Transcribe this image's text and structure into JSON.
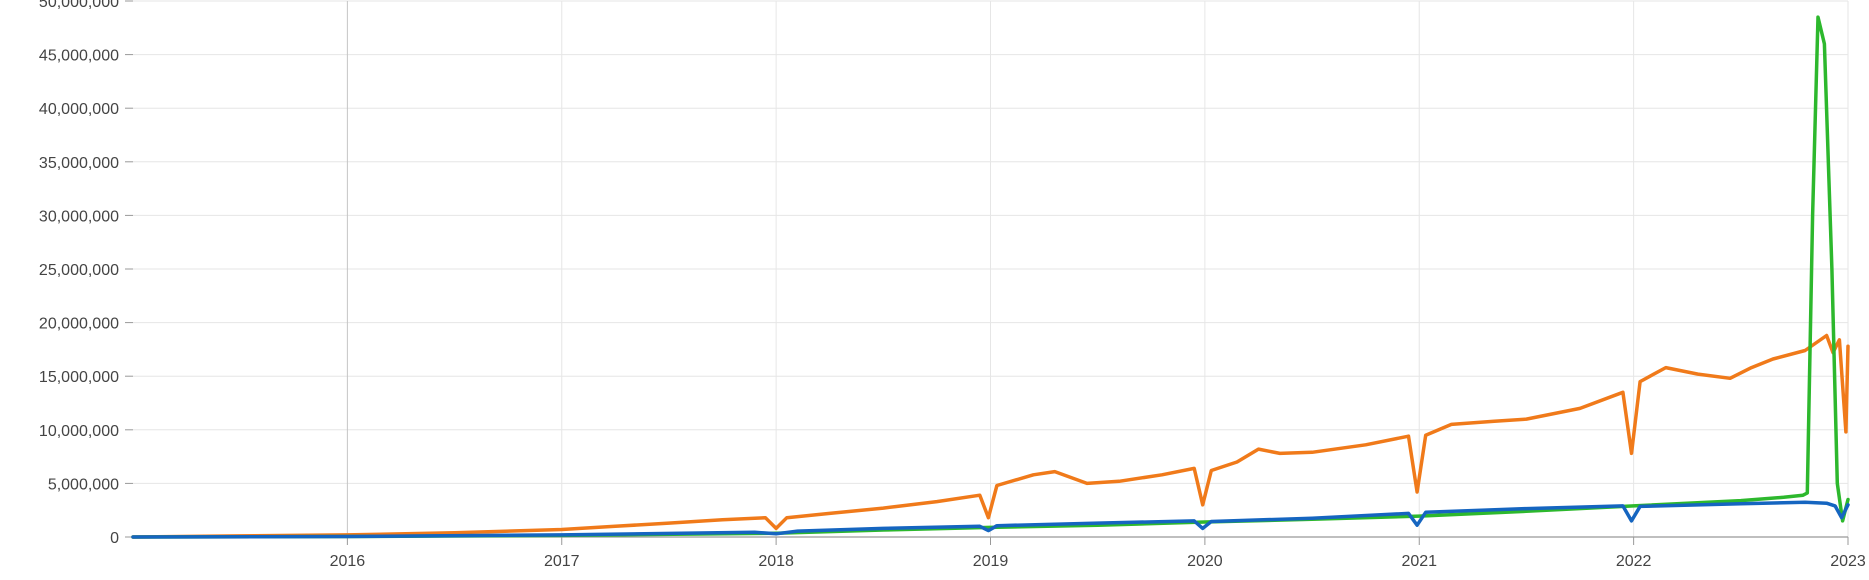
{
  "chart_data": {
    "type": "line",
    "title": "",
    "xlabel": "",
    "ylabel": "",
    "xlim": [
      2015.0,
      2023.0
    ],
    "ylim": [
      0,
      50000000
    ],
    "grid": true,
    "x_ticks": [
      2016,
      2017,
      2018,
      2019,
      2020,
      2021,
      2022,
      2023
    ],
    "x_tick_labels": [
      "2016",
      "2017",
      "2018",
      "2019",
      "2020",
      "2021",
      "2022",
      "2023"
    ],
    "y_ticks": [
      0,
      5000000,
      10000000,
      15000000,
      20000000,
      25000000,
      30000000,
      35000000,
      40000000,
      45000000,
      50000000
    ],
    "y_tick_labels": [
      "0",
      "5,000,000",
      "10,000,000",
      "15,000,000",
      "20,000,000",
      "25,000,000",
      "30,000,000",
      "35,000,000",
      "40,000,000",
      "45,000,000",
      "50,000,000"
    ],
    "series": [
      {
        "color": "#f07a1a",
        "x": [
          2015.0,
          2015.5,
          2016.0,
          2016.5,
          2017.0,
          2017.25,
          2017.5,
          2017.75,
          2017.95,
          2018.0,
          2018.05,
          2018.25,
          2018.5,
          2018.75,
          2018.95,
          2018.99,
          2019.03,
          2019.2,
          2019.3,
          2019.45,
          2019.6,
          2019.8,
          2019.95,
          2019.99,
          2020.03,
          2020.15,
          2020.25,
          2020.35,
          2020.5,
          2020.75,
          2020.95,
          2020.99,
          2021.03,
          2021.15,
          2021.35,
          2021.5,
          2021.75,
          2021.95,
          2021.99,
          2022.03,
          2022.15,
          2022.3,
          2022.45,
          2022.55,
          2022.65,
          2022.8,
          2022.9,
          2022.93,
          2022.96,
          2022.99,
          2023.0
        ],
        "values": [
          0,
          100000,
          200000,
          400000,
          700000,
          1000000,
          1300000,
          1600000,
          1800000,
          800000,
          1800000,
          2200000,
          2700000,
          3300000,
          3900000,
          1800000,
          4800000,
          5800000,
          6100000,
          5000000,
          5200000,
          5800000,
          6400000,
          3000000,
          6200000,
          7000000,
          8200000,
          7800000,
          7900000,
          8600000,
          9400000,
          4200000,
          9500000,
          10500000,
          10800000,
          11000000,
          12000000,
          13500000,
          7800000,
          14500000,
          15800000,
          15200000,
          14800000,
          15800000,
          16600000,
          17400000,
          18800000,
          17200000,
          18400000,
          9800000,
          17800000
        ]
      },
      {
        "color": "#2db82d",
        "x": [
          2015.0,
          2016.0,
          2017.0,
          2018.0,
          2018.5,
          2019.0,
          2019.5,
          2020.0,
          2020.5,
          2021.0,
          2021.5,
          2022.0,
          2022.5,
          2022.7,
          2022.79,
          2022.81,
          2022.835,
          2022.86,
          2022.89,
          2022.925,
          2022.95,
          2022.975,
          2023.0
        ],
        "values": [
          0,
          50000,
          150000,
          350000,
          650000,
          900000,
          1100000,
          1400000,
          1650000,
          1950000,
          2400000,
          2900000,
          3400000,
          3700000,
          3900000,
          4100000,
          30000000,
          48500000,
          46000000,
          25000000,
          5000000,
          1500000,
          3500000
        ]
      },
      {
        "color": "#1565c0",
        "x": [
          2015.0,
          2016.0,
          2017.0,
          2017.9,
          2018.0,
          2018.1,
          2018.5,
          2018.95,
          2018.99,
          2019.03,
          2019.5,
          2019.95,
          2019.99,
          2020.03,
          2020.5,
          2020.95,
          2020.99,
          2021.03,
          2021.5,
          2021.95,
          2021.99,
          2022.03,
          2022.5,
          2022.8,
          2022.9,
          2022.94,
          2022.97,
          2023.0
        ],
        "values": [
          0,
          50000,
          200000,
          450000,
          300000,
          550000,
          800000,
          1000000,
          600000,
          1050000,
          1300000,
          1500000,
          800000,
          1450000,
          1750000,
          2200000,
          1100000,
          2300000,
          2650000,
          2900000,
          1500000,
          2850000,
          3100000,
          3250000,
          3150000,
          2900000,
          1800000,
          3000000
        ]
      }
    ]
  }
}
